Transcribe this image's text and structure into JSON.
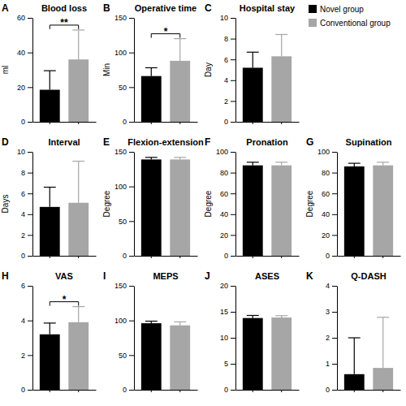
{
  "chart_data": [
    {
      "type": "bar",
      "panel_label": "A",
      "title": "Blood loss",
      "ylabel": "ml",
      "categories": [
        "Novel group",
        "Conventional group"
      ],
      "values": [
        18.5,
        36
      ],
      "errors": [
        11,
        17
      ],
      "colors": [
        "#000000",
        "#a6a6a6"
      ],
      "ylim": [
        0,
        60
      ],
      "yticks": [
        0,
        20,
        40,
        60
      ],
      "tick_labels": "y",
      "annotations": [
        {
          "text": "**"
        }
      ]
    },
    {
      "type": "bar",
      "panel_label": "B",
      "title": "Operative time",
      "ylabel": "Min",
      "categories": [
        "Novel group",
        "Conventional group"
      ],
      "values": [
        66,
        88
      ],
      "errors": [
        12,
        32
      ],
      "colors": [
        "#000000",
        "#a6a6a6"
      ],
      "ylim": [
        0,
        150
      ],
      "yticks": [
        0,
        50,
        100,
        150
      ],
      "tick_labels": "y",
      "annotations": [
        {
          "text": "*"
        }
      ]
    },
    {
      "type": "bar",
      "panel_label": "C",
      "title": "Hospital stay",
      "ylabel": "Day",
      "categories": [
        "Novel group",
        "Conventional group"
      ],
      "values": [
        5.2,
        6.3
      ],
      "errors": [
        1.5,
        2.1
      ],
      "colors": [
        "#000000",
        "#a6a6a6"
      ],
      "ylim": [
        0,
        10
      ],
      "yticks": [
        0,
        2,
        4,
        6,
        8,
        10
      ],
      "tick_labels": "y",
      "legend": "right"
    },
    {
      "type": "bar",
      "panel_label": "D",
      "title": "Interval",
      "ylabel": "Days",
      "categories": [
        "Novel group",
        "Conventional group"
      ],
      "values": [
        4.7,
        5.1
      ],
      "errors": [
        1.9,
        4.0
      ],
      "colors": [
        "#000000",
        "#a6a6a6"
      ],
      "ylim": [
        0,
        10
      ],
      "yticks": [
        0,
        2,
        4,
        6,
        8,
        10
      ],
      "tick_labels": "y"
    },
    {
      "type": "bar",
      "panel_label": "E",
      "title": "Flexion-extension",
      "ylabel": "Degree",
      "categories": [
        "Novel group",
        "Conventional group"
      ],
      "values": [
        139,
        139
      ],
      "errors": [
        3,
        3
      ],
      "colors": [
        "#000000",
        "#a6a6a6"
      ],
      "ylim": [
        0,
        150
      ],
      "yticks": [
        0,
        50,
        100,
        150
      ],
      "tick_labels": "y"
    },
    {
      "type": "bar",
      "panel_label": "F",
      "title": "Pronation",
      "ylabel": "Degree",
      "categories": [
        "Novel group",
        "Conventional group"
      ],
      "values": [
        87,
        87
      ],
      "errors": [
        3,
        3
      ],
      "colors": [
        "#000000",
        "#a6a6a6"
      ],
      "ylim": [
        0,
        100
      ],
      "yticks": [
        0,
        20,
        40,
        60,
        80,
        100
      ],
      "tick_labels": "y"
    },
    {
      "type": "bar",
      "panel_label": "G",
      "title": "Supination",
      "ylabel": "Degree",
      "categories": [
        "Novel group",
        "Conventional group"
      ],
      "values": [
        86,
        87
      ],
      "errors": [
        3,
        3
      ],
      "colors": [
        "#000000",
        "#a6a6a6"
      ],
      "ylim": [
        0,
        100
      ],
      "yticks": [
        0,
        20,
        40,
        60,
        80,
        100
      ],
      "tick_labels": "y"
    },
    {
      "type": "bar",
      "panel_label": "H",
      "title": "VAS",
      "categories": [
        "Novel group",
        "Conventional group"
      ],
      "values": [
        3.2,
        3.9
      ],
      "errors": [
        0.65,
        0.9
      ],
      "colors": [
        "#000000",
        "#a6a6a6"
      ],
      "ylim": [
        0,
        6
      ],
      "yticks": [
        0,
        2,
        4,
        6
      ],
      "tick_labels": "y",
      "annotations": [
        {
          "text": "*"
        }
      ]
    },
    {
      "type": "bar",
      "panel_label": "I",
      "title": "MEPS",
      "categories": [
        "Novel group",
        "Conventional group"
      ],
      "values": [
        96,
        93
      ],
      "errors": [
        3,
        5
      ],
      "colors": [
        "#000000",
        "#a6a6a6"
      ],
      "ylim": [
        0,
        150
      ],
      "yticks": [
        0,
        50,
        100,
        150
      ],
      "tick_labels": "y"
    },
    {
      "type": "bar",
      "panel_label": "J",
      "title": "ASES",
      "categories": [
        "Novel group",
        "Conventional group"
      ],
      "values": [
        13.8,
        13.9
      ],
      "errors": [
        0.5,
        0.35
      ],
      "colors": [
        "#000000",
        "#a6a6a6"
      ],
      "ylim": [
        0,
        20
      ],
      "yticks": [
        0,
        5,
        10,
        15,
        20
      ],
      "tick_labels": "y"
    },
    {
      "type": "bar",
      "panel_label": "K",
      "title": "Q-DASH",
      "categories": [
        "Novel group",
        "Conventional group"
      ],
      "values": [
        0.6,
        0.84
      ],
      "errors": [
        1.4,
        1.95
      ],
      "colors": [
        "#000000",
        "#a6a6a6"
      ],
      "ylim": [
        0,
        4
      ],
      "yticks": [
        0,
        1,
        2,
        3,
        4
      ],
      "tick_labels": "y"
    }
  ]
}
